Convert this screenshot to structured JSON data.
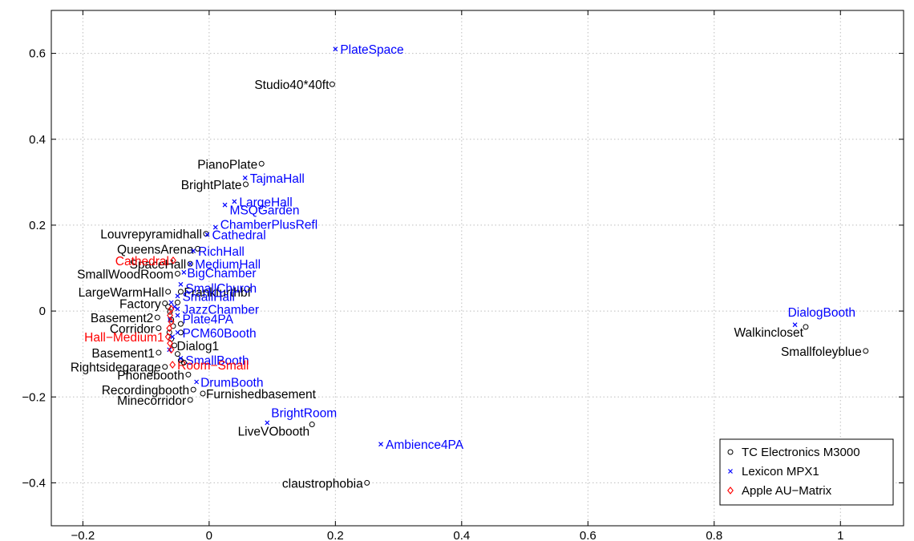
{
  "chart_data": {
    "type": "scatter",
    "title": "",
    "xlabel": "",
    "ylabel": "",
    "xlim": [
      -0.25,
      1.1
    ],
    "ylim": [
      -0.5,
      0.7
    ],
    "grid": true,
    "legend_position": "bottom-right",
    "xticks": [
      -0.2,
      0,
      0.2,
      0.4,
      0.6,
      0.8,
      1
    ],
    "xtick_labels": [
      "−0.2",
      "0",
      "0.2",
      "0.4",
      "0.6",
      "0.8",
      "1"
    ],
    "yticks": [
      -0.4,
      -0.2,
      0,
      0.2,
      0.4,
      0.6
    ],
    "ytick_labels": [
      "−0.4",
      "−0.2",
      "0",
      "0.2",
      "0.4",
      "0.6"
    ],
    "series": [
      {
        "name": "TC Electronics M3000",
        "marker": "circle",
        "color": "#000000",
        "points": [
          {
            "label": "Studio40*40ft",
            "x": 0.195,
            "y": 0.528
          },
          {
            "label": "PianoPlate",
            "x": 0.083,
            "y": 0.343
          },
          {
            "label": "BrightPlate",
            "x": 0.058,
            "y": 0.295
          },
          {
            "label": "Louvrepyramidhall",
            "x": -0.005,
            "y": 0.18
          },
          {
            "label": "QueensArena",
            "x": -0.018,
            "y": 0.145
          },
          {
            "label": "SpaceHall",
            "x": -0.03,
            "y": 0.11
          },
          {
            "label": "SmallWoodRoom",
            "x": -0.05,
            "y": 0.087
          },
          {
            "label": "LargeWarmHall",
            "x": -0.065,
            "y": 0.045
          },
          {
            "label": "Frankfurthbf",
            "x": -0.045,
            "y": 0.045
          },
          {
            "label": "Factory",
            "x": -0.07,
            "y": 0.018
          },
          {
            "label": "Basement2",
            "x": -0.082,
            "y": -0.015
          },
          {
            "label": "Corridor",
            "x": -0.08,
            "y": -0.04
          },
          {
            "label": "Dialog1",
            "x": -0.055,
            "y": -0.08
          },
          {
            "label": "Basement1",
            "x": -0.08,
            "y": -0.097
          },
          {
            "label": "Rightsidegarage",
            "x": -0.07,
            "y": -0.13
          },
          {
            "label": "Phonebooth",
            "x": -0.033,
            "y": -0.148
          },
          {
            "label": "Recordingbooth",
            "x": -0.025,
            "y": -0.183
          },
          {
            "label": "Furnishedbasement",
            "x": -0.01,
            "y": -0.192
          },
          {
            "label": "Minecorridor",
            "x": -0.03,
            "y": -0.207
          },
          {
            "label": "LiveVObooth",
            "x": 0.163,
            "y": -0.264
          },
          {
            "label": "claustrophobia",
            "x": 0.25,
            "y": -0.4
          },
          {
            "label": "Walkincloset",
            "x": 0.945,
            "y": -0.037
          },
          {
            "label": "Smallfoleyblue",
            "x": 1.04,
            "y": -0.093
          }
        ],
        "unlabeled_points": [
          {
            "x": -0.065,
            "y": 0.01
          },
          {
            "x": -0.062,
            "y": -0.002
          },
          {
            "x": -0.06,
            "y": -0.02
          },
          {
            "x": -0.057,
            "y": -0.035
          },
          {
            "x": -0.063,
            "y": -0.05
          },
          {
            "x": -0.06,
            "y": -0.065
          },
          {
            "x": -0.05,
            "y": -0.1
          },
          {
            "x": -0.045,
            "y": -0.115
          },
          {
            "x": -0.04,
            "y": -0.12
          },
          {
            "x": -0.045,
            "y": -0.03
          },
          {
            "x": -0.045,
            "y": -0.05
          },
          {
            "x": -0.05,
            "y": 0.02
          }
        ]
      },
      {
        "name": "Lexicon MPX1",
        "marker": "x",
        "color": "#0000ff",
        "points": [
          {
            "label": "PlateSpace",
            "x": 0.2,
            "y": 0.61
          },
          {
            "label": "TajmaHall",
            "x": 0.057,
            "y": 0.31
          },
          {
            "label": "LargeHall",
            "x": 0.04,
            "y": 0.255
          },
          {
            "label": "MSQGarden",
            "x": 0.025,
            "y": 0.247
          },
          {
            "label": "ChamberPlusRefl",
            "x": 0.01,
            "y": 0.195
          },
          {
            "label": "Cathedral",
            "x": -0.003,
            "y": 0.178
          },
          {
            "label": "RichHall",
            "x": -0.025,
            "y": 0.14
          },
          {
            "label": "MediumHall",
            "x": -0.03,
            "y": 0.11
          },
          {
            "label": "BigChamber",
            "x": -0.04,
            "y": 0.09
          },
          {
            "label": "SmallChurch",
            "x": -0.045,
            "y": 0.062
          },
          {
            "label": "SmallHall",
            "x": -0.05,
            "y": 0.035
          },
          {
            "label": "JazzChamber",
            "x": -0.05,
            "y": 0.005
          },
          {
            "label": "Plate4PA",
            "x": -0.05,
            "y": -0.01
          },
          {
            "label": "PCM60Booth",
            "x": -0.05,
            "y": -0.05
          },
          {
            "label": "SmallBooth",
            "x": -0.045,
            "y": -0.11
          },
          {
            "label": "DrumBooth",
            "x": -0.02,
            "y": -0.165
          },
          {
            "label": "BrightRoom",
            "x": 0.092,
            "y": -0.26
          },
          {
            "label": "Ambience4PA",
            "x": 0.272,
            "y": -0.31
          },
          {
            "label": "DialogBooth",
            "x": 0.928,
            "y": -0.032
          }
        ],
        "unlabeled_points": [
          {
            "x": -0.06,
            "y": 0.02
          },
          {
            "x": -0.062,
            "y": -0.02
          },
          {
            "x": -0.058,
            "y": -0.06
          },
          {
            "x": -0.063,
            "y": -0.09
          },
          {
            "x": -0.055,
            "y": 0.01
          }
        ]
      },
      {
        "name": "Apple AU-Matrix",
        "marker": "diamond",
        "color": "#ff0000",
        "points": [
          {
            "label": "Cathedral",
            "x": -0.057,
            "y": 0.118
          },
          {
            "label": "Hall−Medium1",
            "x": -0.065,
            "y": -0.06
          },
          {
            "label": "Room−Small",
            "x": -0.058,
            "y": -0.125
          }
        ],
        "unlabeled_points": [
          {
            "x": -0.06,
            "y": 0.005
          },
          {
            "x": -0.062,
            "y": -0.01
          },
          {
            "x": -0.06,
            "y": -0.025
          },
          {
            "x": -0.063,
            "y": -0.04
          },
          {
            "x": -0.062,
            "y": -0.075
          },
          {
            "x": -0.06,
            "y": -0.09
          }
        ]
      }
    ],
    "legend": [
      "TC Electronics M3000",
      "Lexicon MPX1",
      "Apple AU−Matrix"
    ]
  }
}
